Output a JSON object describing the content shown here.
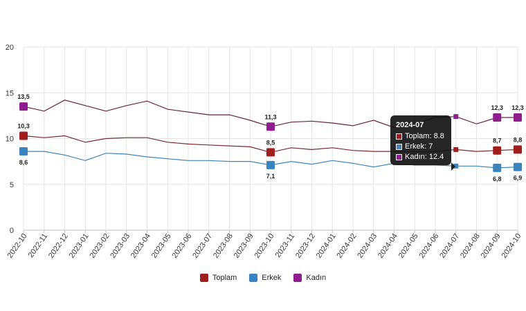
{
  "chart_data": {
    "type": "line",
    "categories": [
      "2022-10",
      "2022-11",
      "2022-12",
      "2023-01",
      "2023-02",
      "2023-03",
      "2023-04",
      "2023-05",
      "2023-06",
      "2023-07",
      "2023-08",
      "2023-09",
      "2023-10",
      "2023-11",
      "2023-12",
      "2024-01",
      "2024-02",
      "2024-03",
      "2024-04",
      "2024-05",
      "2024-06",
      "2024-07",
      "2024-08",
      "2024-09",
      "2024-10"
    ],
    "ylim": [
      0,
      20
    ],
    "yticks": [
      "0",
      "5",
      "10",
      "15",
      "20"
    ],
    "grid": true,
    "legend_position": "bottom",
    "series": [
      {
        "name": "Toplam",
        "color": "#a01e1e",
        "line_color": "#7a2a2a",
        "values": [
          10.3,
          10.1,
          10.3,
          9.6,
          10.0,
          10.1,
          10.1,
          9.6,
          9.4,
          9.3,
          9.2,
          9.1,
          8.5,
          9.0,
          8.8,
          9.0,
          8.7,
          8.6,
          8.6,
          8.6,
          8.6,
          8.8,
          8.6,
          8.7,
          8.8
        ]
      },
      {
        "name": "Erkek",
        "color": "#3a84c0",
        "line_color": "#3a84c0",
        "values": [
          8.6,
          8.6,
          8.2,
          7.6,
          8.4,
          8.3,
          8.0,
          7.8,
          7.6,
          7.6,
          7.5,
          7.5,
          7.1,
          7.5,
          7.2,
          7.6,
          7.3,
          6.9,
          7.3,
          7.1,
          7.1,
          7.0,
          7.0,
          6.8,
          6.9
        ]
      },
      {
        "name": "Kadın",
        "color": "#8e1e8e",
        "line_color": "#6a2040",
        "values": [
          13.5,
          13.0,
          14.2,
          13.6,
          13.0,
          13.6,
          14.1,
          13.2,
          12.9,
          12.6,
          12.6,
          12.0,
          11.3,
          11.8,
          11.9,
          11.7,
          11.4,
          12.0,
          11.2,
          11.6,
          12.3,
          12.4,
          11.6,
          12.3,
          12.3
        ]
      }
    ],
    "data_labels": [
      {
        "series": 0,
        "index": 0,
        "text": "10,3"
      },
      {
        "series": 1,
        "index": 0,
        "text": "8,6"
      },
      {
        "series": 2,
        "index": 0,
        "text": "13,5"
      },
      {
        "series": 0,
        "index": 12,
        "text": "8,5"
      },
      {
        "series": 1,
        "index": 12,
        "text": "7,1"
      },
      {
        "series": 2,
        "index": 12,
        "text": "11,3"
      },
      {
        "series": 0,
        "index": 23,
        "text": "8,7"
      },
      {
        "series": 1,
        "index": 23,
        "text": "6,8"
      },
      {
        "series": 2,
        "index": 23,
        "text": "12,3"
      },
      {
        "series": 0,
        "index": 24,
        "text": "8,8"
      },
      {
        "series": 1,
        "index": 24,
        "text": "6,9"
      },
      {
        "series": 2,
        "index": 24,
        "text": "12,3"
      }
    ],
    "tooltip": {
      "category_index": 21,
      "title": "2024-07",
      "rows": [
        {
          "text": "Toplam: 8.8",
          "color": "#a01e1e"
        },
        {
          "text": "Erkek: 7",
          "color": "#3a84c0"
        },
        {
          "text": "Kadın: 12.4",
          "color": "#8e1e8e"
        }
      ]
    }
  }
}
